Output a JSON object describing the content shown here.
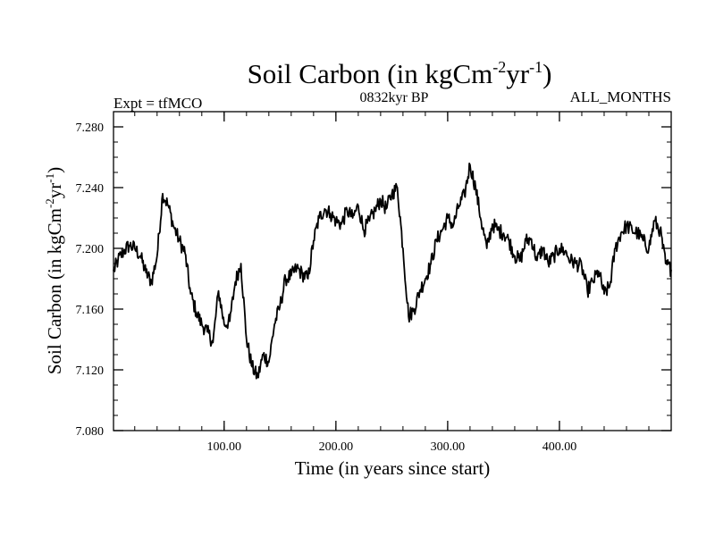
{
  "chart_data": {
    "type": "line",
    "title_main": "Soil Carbon (in kgCm",
    "title_exp1": "-2",
    "title_mid": "yr",
    "title_exp2": "-1",
    "title_close": ")",
    "subtitle_left": "Expt = tfMCO",
    "subtitle_center": "0832kyr BP",
    "subtitle_right": "ALL_MONTHS",
    "xlabel": "Time (in years since start)",
    "ylabel_main": "Soil Carbon (in kgCm",
    "ylabel_exp1": "-2",
    "ylabel_mid": "yr",
    "ylabel_exp2": "-1",
    "ylabel_close": ")",
    "xlim": [
      1,
      500
    ],
    "ylim": [
      7.08,
      7.29
    ],
    "x_ticks": [
      100,
      200,
      300,
      400
    ],
    "x_tick_labels": [
      "100.00",
      "200.00",
      "300.00",
      "400.00"
    ],
    "y_ticks": [
      7.08,
      7.12,
      7.16,
      7.2,
      7.24,
      7.28
    ],
    "y_tick_labels": [
      "7.080",
      "7.120",
      "7.160",
      "7.200",
      "7.240",
      "7.280"
    ],
    "series": [
      {
        "name": "Soil Carbon",
        "x": [
          1,
          5,
          10,
          15,
          20,
          25,
          30,
          35,
          40,
          45,
          50,
          55,
          60,
          65,
          70,
          75,
          80,
          85,
          90,
          95,
          100,
          105,
          110,
          115,
          120,
          125,
          130,
          135,
          140,
          145,
          150,
          155,
          160,
          165,
          170,
          175,
          180,
          185,
          190,
          195,
          200,
          205,
          210,
          215,
          220,
          225,
          230,
          235,
          240,
          245,
          250,
          255,
          260,
          265,
          270,
          275,
          280,
          285,
          290,
          295,
          300,
          305,
          310,
          315,
          320,
          325,
          330,
          335,
          340,
          345,
          350,
          355,
          360,
          365,
          370,
          375,
          380,
          385,
          390,
          395,
          400,
          405,
          410,
          415,
          420,
          425,
          430,
          435,
          440,
          445,
          450,
          455,
          460,
          465,
          470,
          475,
          480,
          485,
          490,
          495,
          500
        ],
        "values": [
          7.185,
          7.192,
          7.198,
          7.202,
          7.2,
          7.195,
          7.184,
          7.178,
          7.195,
          7.236,
          7.228,
          7.214,
          7.205,
          7.197,
          7.17,
          7.158,
          7.15,
          7.145,
          7.138,
          7.172,
          7.15,
          7.152,
          7.178,
          7.19,
          7.14,
          7.122,
          7.115,
          7.13,
          7.125,
          7.15,
          7.162,
          7.18,
          7.182,
          7.187,
          7.183,
          7.18,
          7.205,
          7.22,
          7.226,
          7.223,
          7.218,
          7.216,
          7.225,
          7.22,
          7.228,
          7.212,
          7.218,
          7.225,
          7.232,
          7.226,
          7.236,
          7.24,
          7.2,
          7.155,
          7.16,
          7.172,
          7.18,
          7.19,
          7.205,
          7.212,
          7.22,
          7.215,
          7.228,
          7.235,
          7.255,
          7.24,
          7.218,
          7.2,
          7.216,
          7.212,
          7.21,
          7.205,
          7.195,
          7.192,
          7.205,
          7.206,
          7.192,
          7.2,
          7.19,
          7.195,
          7.2,
          7.198,
          7.192,
          7.19,
          7.188,
          7.172,
          7.178,
          7.185,
          7.17,
          7.175,
          7.2,
          7.21,
          7.215,
          7.212,
          7.21,
          7.205,
          7.2,
          7.218,
          7.212,
          7.19,
          7.186
        ]
      }
    ]
  }
}
